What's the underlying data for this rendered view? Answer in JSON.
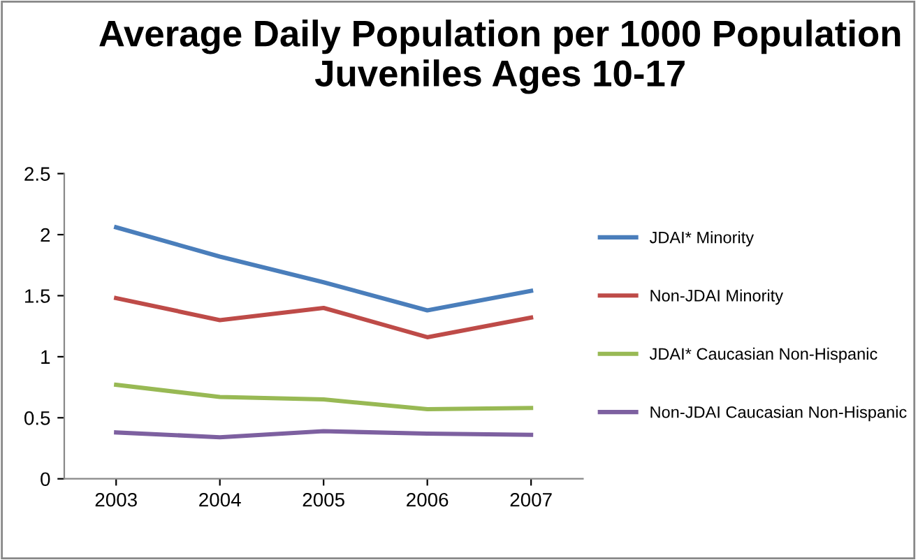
{
  "chart_data": {
    "type": "line",
    "title": "Average Daily Population per 1000 Population Juveniles Ages 10-17",
    "categories": [
      "2003",
      "2004",
      "2005",
      "2006",
      "2007"
    ],
    "series": [
      {
        "name": "JDAI* Minority",
        "color": "#4a7ebb",
        "values": [
          2.06,
          1.82,
          1.61,
          1.38,
          1.54
        ]
      },
      {
        "name": "Non-JDAI Minority",
        "color": "#be4b48",
        "values": [
          1.48,
          1.3,
          1.4,
          1.16,
          1.32
        ]
      },
      {
        "name": "JDAI* Caucasian Non-Hispanic",
        "color": "#98b954",
        "values": [
          0.77,
          0.67,
          0.65,
          0.57,
          0.58
        ]
      },
      {
        "name": "Non-JDAI Caucasian Non-Hispanic",
        "color": "#7d60a0",
        "values": [
          0.38,
          0.34,
          0.39,
          0.37,
          0.36
        ]
      }
    ],
    "ylim": [
      0,
      2.5
    ],
    "yticks": [
      0,
      0.5,
      1,
      1.5,
      2,
      2.5
    ],
    "grid": false,
    "legend": "right",
    "marker": "none",
    "line_style": "solid"
  }
}
